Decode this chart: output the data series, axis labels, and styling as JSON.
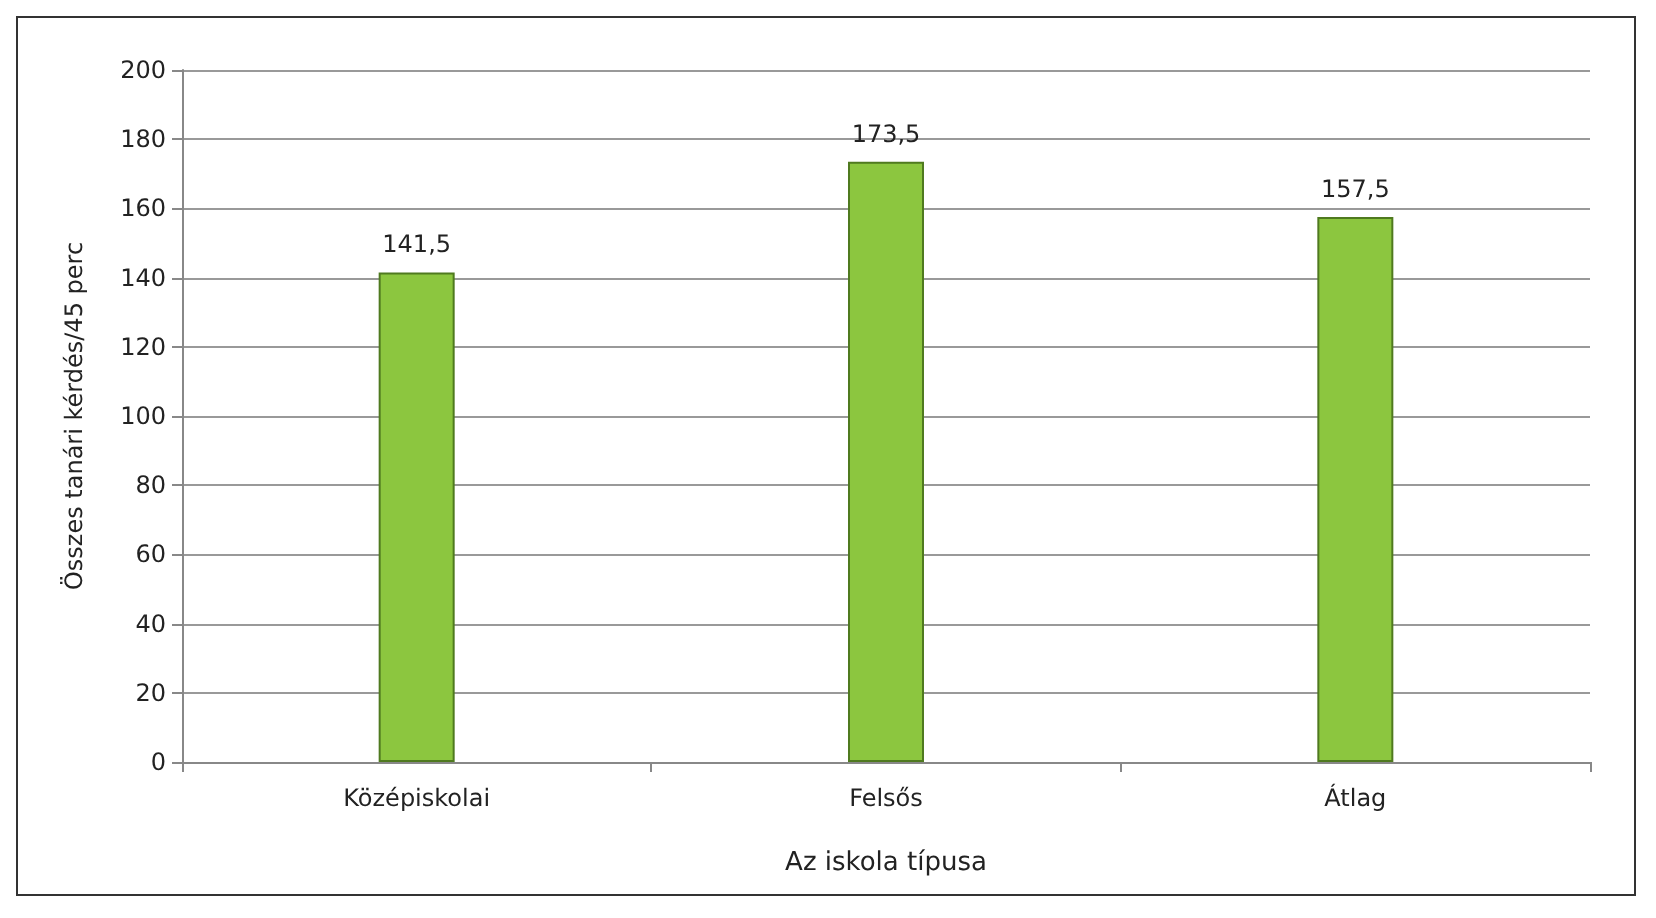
{
  "chart_data": {
    "type": "bar",
    "xlabel": "Az iskola típusa",
    "ylabel": "Összes tanári kérdés/45 perc",
    "categories": [
      "Középiskolai",
      "Felsős",
      "Átlag"
    ],
    "values": [
      141.5,
      173.5,
      157.5
    ],
    "value_labels": [
      "141,5",
      "173,5",
      "157,5"
    ],
    "color": "#8cc63f",
    "ylim": [
      0,
      200
    ],
    "yticks": [
      0,
      20,
      40,
      60,
      80,
      100,
      120,
      140,
      160,
      180,
      200
    ],
    "grid": "y"
  }
}
